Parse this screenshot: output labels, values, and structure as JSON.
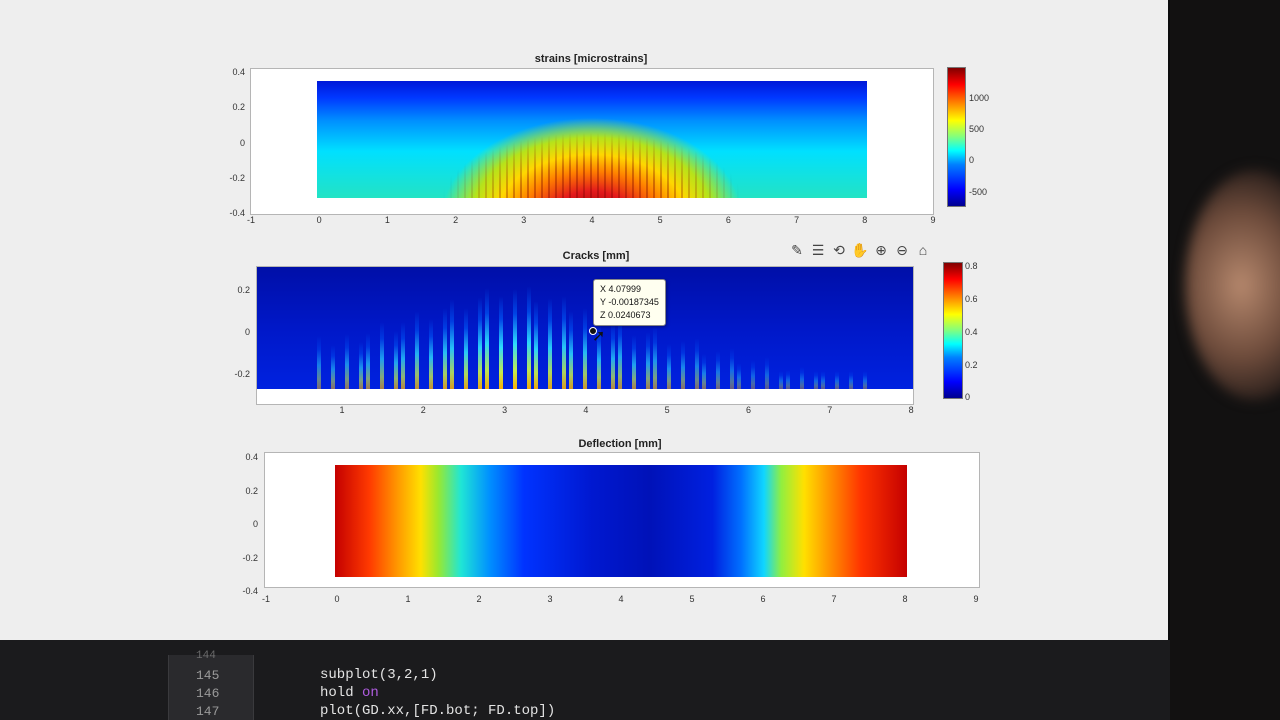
{
  "figure": {
    "toolbar_icons": [
      "brush-icon",
      "legend-icon",
      "rotate-icon",
      "pan-icon",
      "zoom-in-icon",
      "zoom-out-icon",
      "home-icon"
    ]
  },
  "chart_data": [
    {
      "type": "heatmap",
      "title": "strains [microstrains]",
      "x_ticks": [
        "-1",
        "0",
        "1",
        "2",
        "3",
        "4",
        "5",
        "6",
        "7",
        "8",
        "9"
      ],
      "y_ticks": [
        "0.4",
        "0.2",
        "0",
        "-0.2",
        "-0.4"
      ],
      "xlim": [
        -1,
        9
      ],
      "ylim": [
        -0.4,
        0.4
      ],
      "colorbar_ticks": [
        "1000",
        "500",
        "0",
        "-500"
      ],
      "colormap": "jet"
    },
    {
      "type": "heatmap",
      "title": "Cracks [mm]",
      "x_ticks": [
        "1",
        "2",
        "3",
        "4",
        "5",
        "6",
        "7",
        "8"
      ],
      "y_ticks": [
        "0.2",
        "0",
        "-0.2"
      ],
      "colorbar_ticks": [
        "0.8",
        "0.6",
        "0.4",
        "0.2",
        "0"
      ],
      "colormap": "jet",
      "datatip": {
        "x": "X 4.07999",
        "y": "Y -0.00187345",
        "z": "Z 0.0240673"
      }
    },
    {
      "type": "heatmap",
      "title": "Deflection [mm]",
      "x_ticks": [
        "-1",
        "0",
        "1",
        "2",
        "3",
        "4",
        "5",
        "6",
        "7",
        "8",
        "9"
      ],
      "y_ticks": [
        "0.4",
        "0.2",
        "0",
        "-0.2",
        "-0.4"
      ],
      "xlim": [
        -1,
        9
      ],
      "ylim": [
        -0.4,
        0.4
      ],
      "colormap": "jet"
    }
  ],
  "editor": {
    "line_numbers": [
      "144",
      "145",
      "146",
      "147"
    ],
    "lines": {
      "l145": "subplot(3,2,1)",
      "l146_a": "hold ",
      "l146_b": "on",
      "l147": "plot(GD.xx,[FD.bot; FD.top])"
    }
  }
}
